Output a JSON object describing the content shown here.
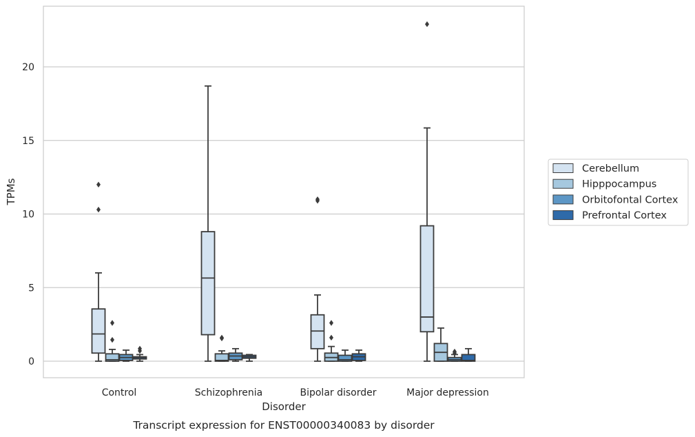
{
  "chart_data": {
    "type": "box",
    "caption": "Transcript expression for ENST00000340083 by disorder",
    "xlabel": "Disorder",
    "ylabel": "TPMs",
    "ylim": [
      -1.1,
      24.2
    ],
    "yticks": [
      0,
      5,
      10,
      15,
      20
    ],
    "grid": true,
    "legend_position": "right-outside",
    "categories": [
      "Control",
      "Schizophrenia",
      "Bipolar disorder",
      "Major depression"
    ],
    "series": [
      {
        "name": "Cerebellum",
        "color": "#d4e3f1",
        "boxes": [
          {
            "whisker_low": 0.0,
            "q1": 0.55,
            "median": 1.85,
            "q3": 3.55,
            "whisker_high": 6.0,
            "outliers": [
              10.3,
              12.0
            ]
          },
          {
            "whisker_low": 0.0,
            "q1": 1.8,
            "median": 5.65,
            "q3": 8.8,
            "whisker_high": 18.7,
            "outliers": []
          },
          {
            "whisker_low": 0.0,
            "q1": 0.85,
            "median": 2.05,
            "q3": 3.15,
            "whisker_high": 4.5,
            "outliers": [
              10.9,
              11.0
            ]
          },
          {
            "whisker_low": 0.0,
            "q1": 2.0,
            "median": 3.0,
            "q3": 9.2,
            "whisker_high": 15.85,
            "outliers": [
              22.9
            ]
          }
        ]
      },
      {
        "name": "Hipppocampus",
        "color": "#a6c8df",
        "boxes": [
          {
            "whisker_low": 0.0,
            "q1": 0.0,
            "median": 0.1,
            "q3": 0.5,
            "whisker_high": 0.8,
            "outliers": [
              1.45,
              2.6
            ]
          },
          {
            "whisker_low": 0.0,
            "q1": 0.0,
            "median": 0.05,
            "q3": 0.5,
            "whisker_high": 0.7,
            "outliers": [
              1.55,
              1.6
            ]
          },
          {
            "whisker_low": 0.0,
            "q1": 0.0,
            "median": 0.25,
            "q3": 0.55,
            "whisker_high": 1.0,
            "outliers": [
              1.6,
              2.6
            ]
          },
          {
            "whisker_low": 0.0,
            "q1": 0.0,
            "median": 0.6,
            "q3": 1.2,
            "whisker_high": 2.25,
            "outliers": []
          }
        ]
      },
      {
        "name": "Orbitofontal Cortex",
        "color": "#5d97c6",
        "boxes": [
          {
            "whisker_low": 0.0,
            "q1": 0.05,
            "median": 0.25,
            "q3": 0.45,
            "whisker_high": 0.75,
            "outliers": []
          },
          {
            "whisker_low": 0.0,
            "q1": 0.1,
            "median": 0.35,
            "q3": 0.55,
            "whisker_high": 0.85,
            "outliers": []
          },
          {
            "whisker_low": 0.0,
            "q1": 0.0,
            "median": 0.1,
            "q3": 0.4,
            "whisker_high": 0.75,
            "outliers": []
          },
          {
            "whisker_low": 0.0,
            "q1": 0.0,
            "median": 0.1,
            "q3": 0.25,
            "whisker_high": 0.45,
            "outliers": [
              0.55,
              0.65
            ]
          }
        ]
      },
      {
        "name": "Prefrontal Cortex",
        "color": "#2e6aa9",
        "boxes": [
          {
            "whisker_low": 0.0,
            "q1": 0.15,
            "median": 0.25,
            "q3": 0.3,
            "whisker_high": 0.45,
            "outliers": [
              0.7,
              0.85
            ]
          },
          {
            "whisker_low": 0.0,
            "q1": 0.2,
            "median": 0.3,
            "q3": 0.4,
            "whisker_high": 0.45,
            "outliers": []
          },
          {
            "whisker_low": 0.0,
            "q1": 0.05,
            "median": 0.3,
            "q3": 0.5,
            "whisker_high": 0.75,
            "outliers": []
          },
          {
            "whisker_low": 0.0,
            "q1": 0.0,
            "median": 0.05,
            "q3": 0.45,
            "whisker_high": 0.85,
            "outliers": []
          }
        ]
      }
    ]
  }
}
